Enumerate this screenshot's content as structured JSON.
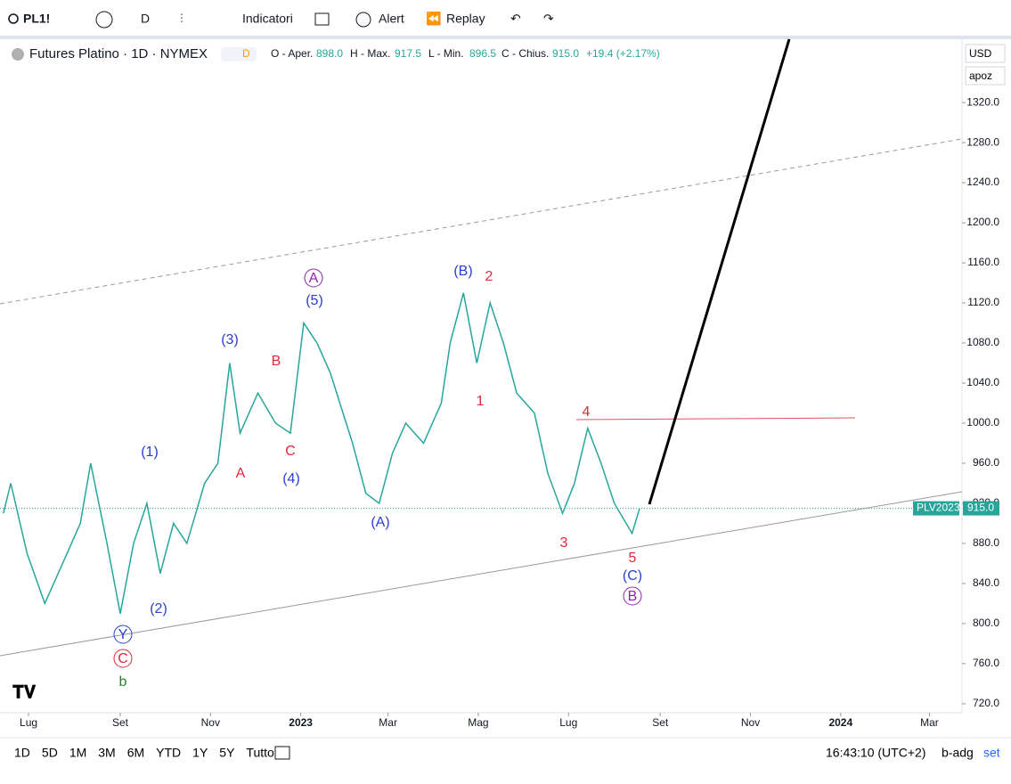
{
  "toolbar": {
    "symbol": "PL1!",
    "interval": "D",
    "indicators": "Indicatori",
    "alert": "Alert",
    "replay": "Replay"
  },
  "legend": {
    "title": "Futures Platino · 1D · NYMEX",
    "badge": "D",
    "open_label": "O - Aper.",
    "open": "898.0",
    "high_label": "H - Max.",
    "high": "917.5",
    "low_label": "L - Min.",
    "low": "896.5",
    "close_label": "C - Chius.",
    "close": "915.0",
    "change": "+19.4 (+2.17%)"
  },
  "scale": {
    "currency": "USD",
    "mode": "apoz"
  },
  "price_tag": {
    "name": "PLV2023"
  },
  "chart_data": {
    "type": "line",
    "color": "#26a69a",
    "x": [
      -17,
      -12,
      -1,
      11,
      23,
      35,
      42,
      53,
      62,
      71,
      80,
      89,
      98,
      107,
      119,
      128,
      136,
      143,
      155,
      167,
      177,
      186,
      195,
      204,
      219,
      228,
      237,
      246,
      255,
      267,
      279,
      285,
      294,
      303,
      312,
      321,
      330,
      342,
      351,
      361,
      369,
      378,
      387,
      396,
      408,
      413
    ],
    "values": [
      910,
      940,
      870,
      820,
      860,
      900,
      960,
      880,
      810,
      880,
      920,
      850,
      900,
      880,
      940,
      960,
      1060,
      990,
      1030,
      1000,
      990,
      1100,
      1080,
      1050,
      980,
      930,
      920,
      970,
      1000,
      980,
      1020,
      1080,
      1130,
      1060,
      1120,
      1080,
      1030,
      1010,
      950,
      910,
      940,
      995,
      960,
      920,
      890,
      915
    ],
    "xlim": [
      -19.3,
      631
    ],
    "ylim": [
      711,
      1385
    ],
    "xticks": [
      {
        "value": 0,
        "label": "Lug"
      },
      {
        "value": 62,
        "label": "Set"
      },
      {
        "value": 123,
        "label": "Nov"
      },
      {
        "value": 184,
        "label": "2023"
      },
      {
        "value": 243,
        "label": "Mar"
      },
      {
        "value": 304,
        "label": "Mag"
      },
      {
        "value": 365,
        "label": "Lug"
      },
      {
        "value": 427,
        "label": "Set"
      },
      {
        "value": 488,
        "label": "Nov"
      },
      {
        "value": 549,
        "label": "2024"
      },
      {
        "value": 609,
        "label": "Mar"
      }
    ],
    "yticks": [
      {
        "value": 720,
        "label": "720.0"
      },
      {
        "value": 760,
        "label": "760.0"
      },
      {
        "value": 800,
        "label": "800.0"
      },
      {
        "value": 840,
        "label": "840.0"
      },
      {
        "value": 880,
        "label": "880.0"
      },
      {
        "value": 920,
        "label": "920.0"
      },
      {
        "value": 960,
        "label": "960.0"
      },
      {
        "value": 1000,
        "label": "1000.0"
      },
      {
        "value": 1040,
        "label": "1040.0"
      },
      {
        "value": 1080,
        "label": "1080.0"
      },
      {
        "value": 1120,
        "label": "1120.0"
      },
      {
        "value": 1160,
        "label": "1160.0"
      },
      {
        "value": 1200,
        "label": "1200.0"
      },
      {
        "value": 1240,
        "label": "1240.0"
      },
      {
        "value": 1280,
        "label": "1280.0"
      },
      {
        "value": 1320,
        "label": "1320.0"
      }
    ],
    "last_price": {
      "value": 915,
      "label": "915.0"
    }
  },
  "waves": [
    "(B)",
    "2",
    "A",
    "(5)",
    "(3)",
    "B",
    "1",
    "4",
    "(1)",
    "C",
    "A",
    "(4)",
    "(A)",
    "3",
    "5",
    "(C)",
    "B",
    "(2)",
    "Y",
    "C",
    "b"
  ],
  "bottom": {
    "ranges": [
      "1D",
      "5D",
      "1M",
      "3M",
      "6M",
      "YTD",
      "1Y",
      "5Y",
      "Tutto"
    ],
    "time": "16:43:10 (UTC+2)",
    "session": "b-adg",
    "settings": "set"
  }
}
